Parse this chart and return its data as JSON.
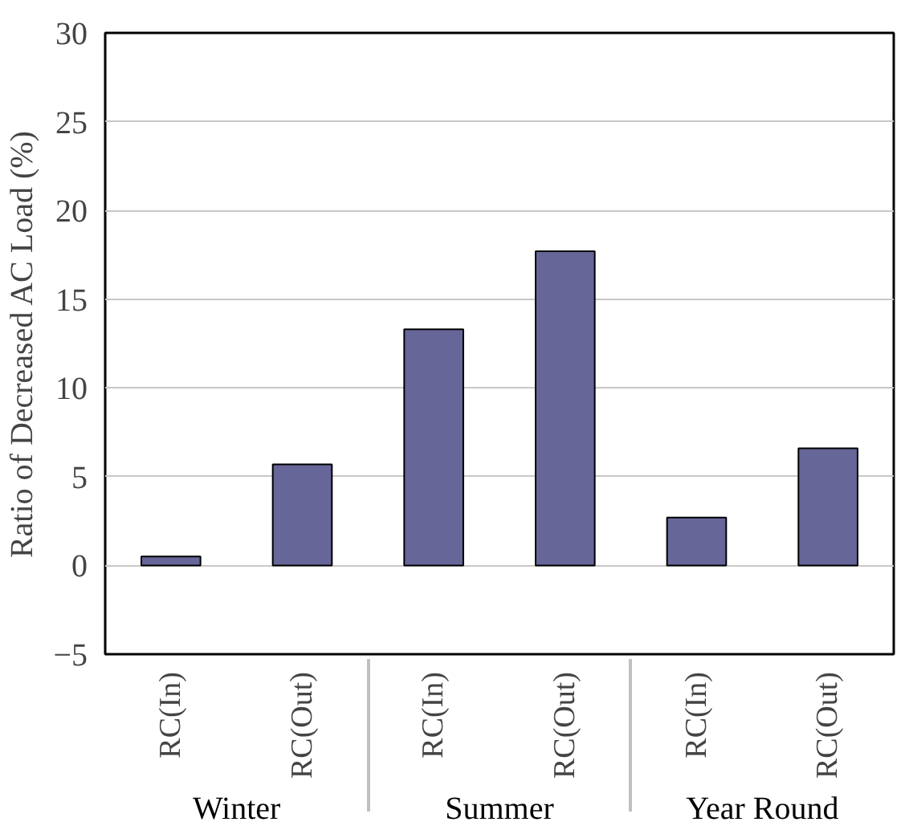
{
  "chart_data": {
    "type": "bar",
    "ylabel": "Ratio of Decreased AC Load (%)",
    "categories": [
      "RC(In)",
      "RC(Out)",
      "RC(In)",
      "RC(Out)",
      "RC(In)",
      "RC(Out)"
    ],
    "annotations": [
      "Winter",
      "Summer",
      "Year Round"
    ],
    "values": [
      0.5,
      5.7,
      13.3,
      17.7,
      2.7,
      6.6
    ],
    "color": "#666699",
    "ylim": [
      -5,
      30
    ],
    "yticks": [
      -5,
      0,
      5,
      10,
      15,
      20,
      25,
      30
    ],
    "grid": "y"
  }
}
